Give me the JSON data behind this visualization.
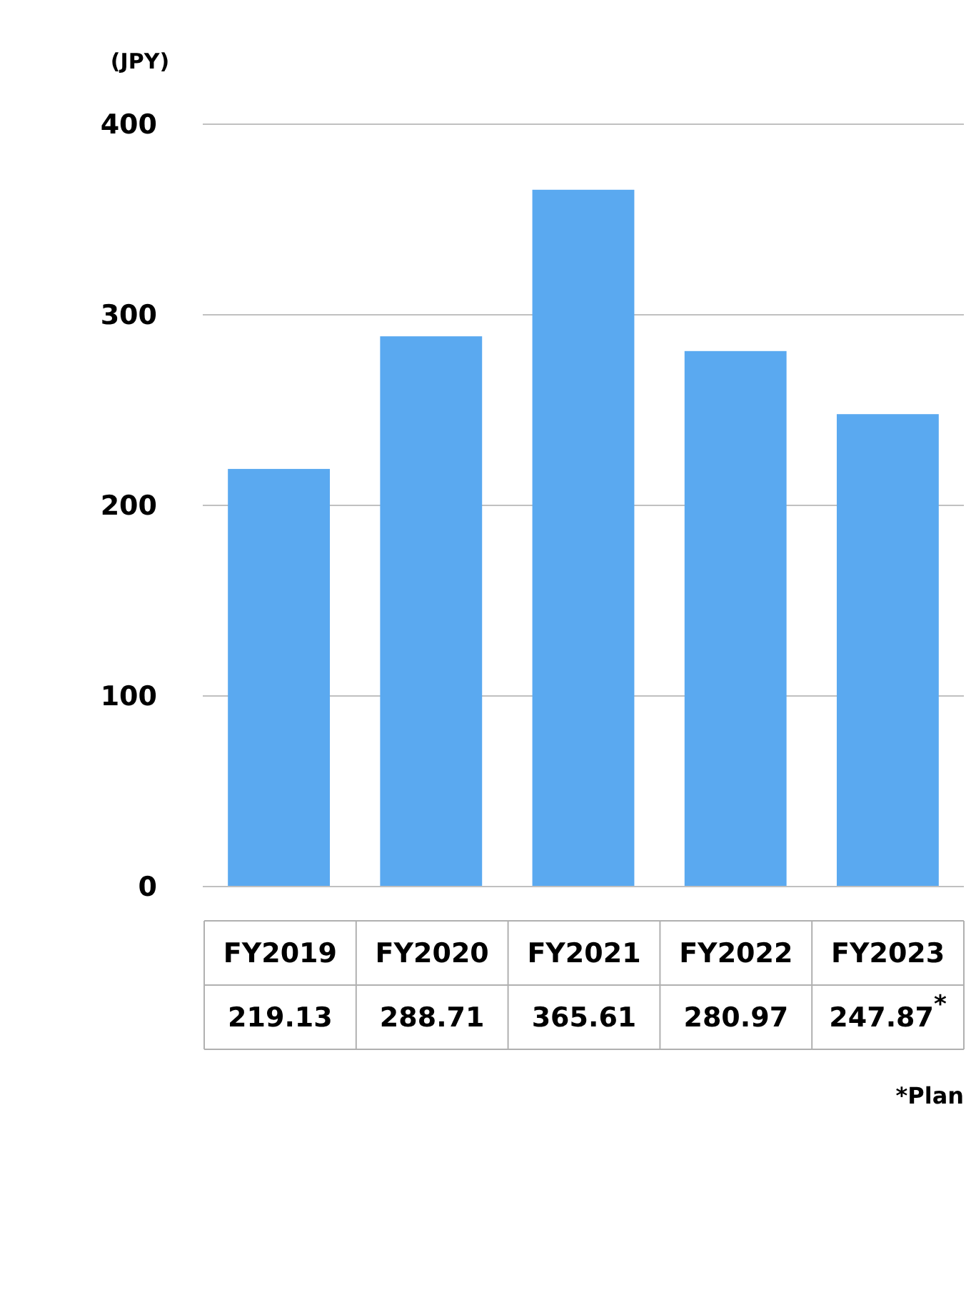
{
  "chart_data": {
    "type": "bar",
    "ylabel": "(JPY)",
    "categories": [
      "FY2019",
      "FY2020",
      "FY2021",
      "FY2022",
      "FY2023"
    ],
    "values": [
      219.13,
      288.71,
      365.61,
      280.97,
      247.87
    ],
    "value_labels": [
      "219.13",
      "288.71",
      "365.61",
      "280.97",
      "247.87$^{*}$"
    ],
    "color": "#5aa9f0",
    "ylim": [
      0,
      400
    ],
    "yticks": [
      0,
      100,
      200,
      300,
      400
    ],
    "grid": "y",
    "annotations": [
      "*Plan"
    ]
  }
}
